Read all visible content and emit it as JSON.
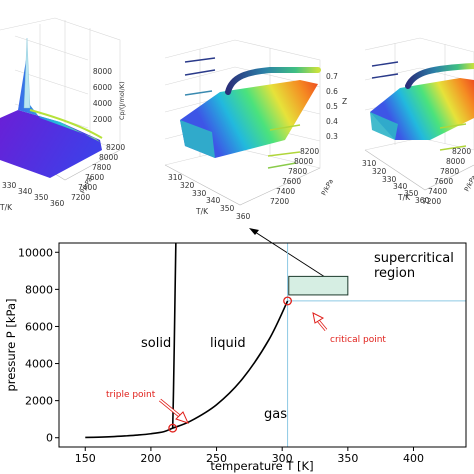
{
  "chart_data": [
    {
      "type": "line",
      "panel": "main",
      "xlabel": "temperature T [K]",
      "ylabel": "pressure P [kPa]",
      "xlim": [
        130,
        440
      ],
      "ylim": [
        -500,
        10500
      ],
      "xticks": [
        150,
        200,
        250,
        300,
        350,
        400
      ],
      "yticks": [
        0,
        2000,
        4000,
        6000,
        8000,
        10000
      ],
      "grid": false,
      "series": [
        {
          "role": "vapor-pressure-curve",
          "x": [
            150,
            160,
            170,
            180,
            190,
            200,
            210,
            216.6,
            230,
            250,
            270,
            290,
            304.1
          ],
          "y": [
            15,
            30,
            55,
            95,
            145,
            215,
            330,
            518,
            890,
            1780,
            3200,
            5300,
            7377
          ]
        },
        {
          "role": "melting-curve",
          "x": [
            216.6,
            217.2,
            217.8,
            218.4,
            219.0
          ],
          "y": [
            518,
            2500,
            5000,
            7800,
            10500
          ]
        }
      ],
      "points": [
        {
          "label": "triple point",
          "x": 216.6,
          "y": 518
        },
        {
          "label": "critical point",
          "x": 304.1,
          "y": 7377
        }
      ],
      "reference_lines": {
        "vertical_x": 304.1,
        "horizontal_y": 7377,
        "color": "#8ec9e4"
      },
      "highlight_box": {
        "x": [
          305,
          350
        ],
        "y": [
          7700,
          8700
        ],
        "fill": "#d6eee3",
        "stroke": "#1c3a2c"
      },
      "region_labels": [
        "solid",
        "liquid",
        "gas",
        "supercritical",
        "region"
      ],
      "annotations": {
        "triple": "triple point",
        "critical": "critical point",
        "color": "#e0201b"
      },
      "colors": {
        "curve": "#000000",
        "marker": "#e0201b"
      }
    },
    {
      "type": "surface3d",
      "panel": "left",
      "zlabel": "Cp/(J/mol/K)",
      "ylabel": "P/kPa",
      "xlabel": "T/K",
      "zticks": [
        2000,
        4000,
        6000,
        8000
      ],
      "yticks": [
        7200,
        7400,
        7600,
        7800,
        8000,
        8200
      ],
      "xticks": [
        330,
        340,
        350,
        360
      ]
    },
    {
      "type": "surface3d",
      "panel": "middle",
      "zlabel": "Z",
      "ylabel": "P/kPa",
      "xlabel": "T/K",
      "zticks": [
        0.3,
        0.4,
        0.5,
        0.6,
        0.7
      ],
      "yticks": [
        7200,
        7400,
        7600,
        7800,
        8000,
        8200
      ],
      "xticks": [
        310,
        320,
        330,
        340,
        350,
        360
      ]
    },
    {
      "type": "surface3d",
      "panel": "right",
      "ylabel": "P/kPa",
      "xlabel": "T/K",
      "yticks": [
        7200,
        7400,
        7600,
        7800,
        8000,
        8200
      ],
      "xticks": [
        310,
        320,
        330,
        340,
        350,
        360
      ]
    }
  ]
}
